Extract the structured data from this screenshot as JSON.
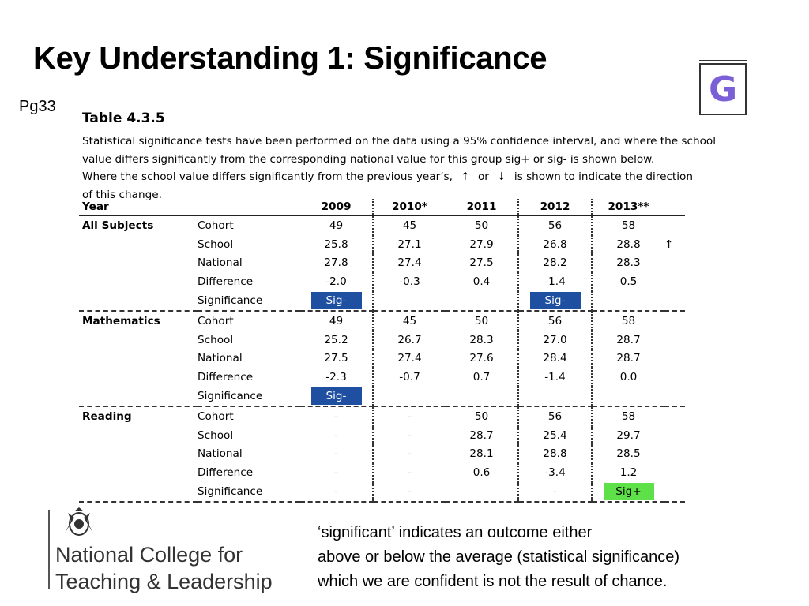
{
  "title": "Key Understanding 1: Significance",
  "page_ref": "Pg33",
  "logo_letter": "G",
  "table": {
    "caption": "Table 4.3.5",
    "description_lines": [
      "Statistical significance tests have been performed on the data using a 95% confidence interval, and where the school",
      "value differs significantly from the corresponding national value for this group sig+ or sig- is shown below.",
      "is shown to indicate the direction",
      "of this change."
    ],
    "description_line3_prefix": "Where the school value differs significantly from the previous year’s,",
    "arrow_up": "↑",
    "or_word": "or",
    "arrow_down": "↓",
    "headers": [
      "Year",
      "2009",
      "2010*",
      "2011",
      "2012",
      "2013**"
    ],
    "groups": [
      {
        "subject": "All Subjects",
        "rows": [
          {
            "label": "Cohort",
            "values": [
              "49",
              "45",
              "50",
              "56",
              "58"
            ],
            "arrow": ""
          },
          {
            "label": "School",
            "values": [
              "25.8",
              "27.1",
              "27.9",
              "26.8",
              "28.8"
            ],
            "arrow": "↑"
          },
          {
            "label": "National",
            "values": [
              "27.8",
              "27.4",
              "27.5",
              "28.2",
              "28.3"
            ],
            "arrow": ""
          },
          {
            "label": "Difference",
            "values": [
              "-2.0",
              "-0.3",
              "0.4",
              "-1.4",
              "0.5"
            ],
            "arrow": ""
          },
          {
            "label": "Significance",
            "values": [
              "Sig-",
              "",
              "",
              "Sig-",
              ""
            ],
            "arrow": ""
          }
        ]
      },
      {
        "subject": "Mathematics",
        "rows": [
          {
            "label": "Cohort",
            "values": [
              "49",
              "45",
              "50",
              "56",
              "58"
            ],
            "arrow": ""
          },
          {
            "label": "School",
            "values": [
              "25.2",
              "26.7",
              "28.3",
              "27.0",
              "28.7"
            ],
            "arrow": ""
          },
          {
            "label": "National",
            "values": [
              "27.5",
              "27.4",
              "27.6",
              "28.4",
              "28.7"
            ],
            "arrow": ""
          },
          {
            "label": "Difference",
            "values": [
              "-2.3",
              "-0.7",
              "0.7",
              "-1.4",
              "0.0"
            ],
            "arrow": ""
          },
          {
            "label": "Significance",
            "values": [
              "Sig-",
              "",
              "",
              "",
              ""
            ],
            "arrow": ""
          }
        ]
      },
      {
        "subject": "Reading",
        "rows": [
          {
            "label": "Cohort",
            "values": [
              "-",
              "-",
              "50",
              "56",
              "58"
            ],
            "arrow": ""
          },
          {
            "label": "School",
            "values": [
              "-",
              "-",
              "28.7",
              "25.4",
              "29.7"
            ],
            "arrow": ""
          },
          {
            "label": "National",
            "values": [
              "-",
              "-",
              "28.1",
              "28.8",
              "28.5"
            ],
            "arrow": ""
          },
          {
            "label": "Difference",
            "values": [
              "-",
              "-",
              "0.6",
              "-3.4",
              "1.2"
            ],
            "arrow": ""
          },
          {
            "label": "Significance",
            "values": [
              "-",
              "-",
              "",
              "-",
              "Sig+"
            ],
            "arrow": ""
          }
        ]
      }
    ],
    "colors": {
      "sig_minus": "#1f4fa0",
      "sig_plus": "#5ee048"
    }
  },
  "organisation": {
    "line1": "National College for",
    "line2": "Teaching & Leadership"
  },
  "note_lines": [
    "‘significant’ indicates an outcome either",
    "above or below the average (statistical significance)",
    "which we are confident is not the result of chance."
  ]
}
